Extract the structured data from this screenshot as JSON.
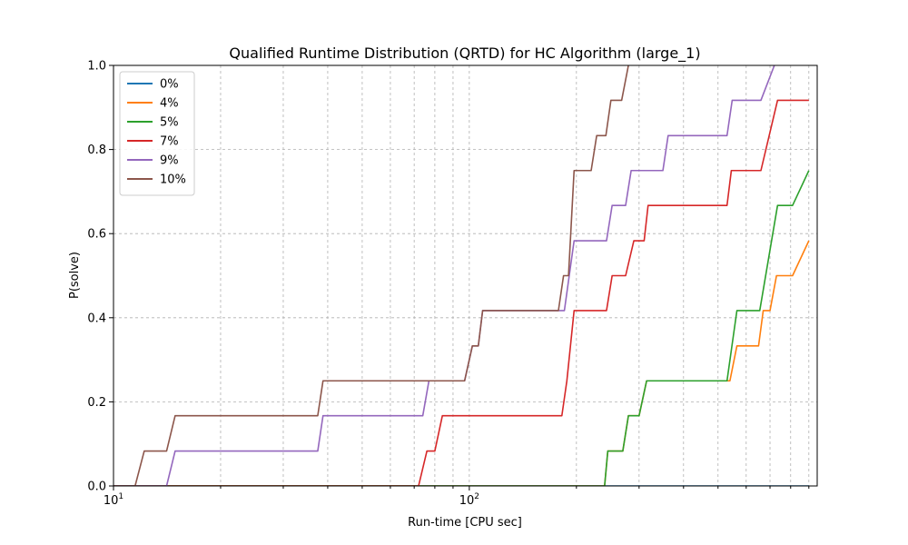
{
  "chart_data": {
    "type": "line",
    "title": "Qualified Runtime Distribution (QRTD) for HC Algorithm (large_1)",
    "xlabel": "Run-time [CPU sec]",
    "ylabel": "P(solve)",
    "xscale": "log",
    "xlim": [
      10,
      950
    ],
    "ylim": [
      0,
      1.0
    ],
    "x_tick_labels": [
      {
        "value": 10,
        "base": "10",
        "exp": "1"
      },
      {
        "value": 100,
        "base": "10",
        "exp": "2"
      }
    ],
    "y_ticks": [
      0.0,
      0.2,
      0.4,
      0.6,
      0.8,
      1.0
    ],
    "y_tick_labels": [
      "0.0",
      "0.2",
      "0.4",
      "0.6",
      "0.8",
      "1.0"
    ],
    "grid": true,
    "legend_position": "top-left",
    "series": [
      {
        "name": "0%",
        "color": "#1f77b4",
        "points": [
          [
            10,
            0
          ],
          [
            900,
            0
          ]
        ]
      },
      {
        "name": "4%",
        "color": "#ff7f0e",
        "points": [
          [
            10,
            0
          ],
          [
            240,
            0
          ],
          [
            245,
            0.083
          ],
          [
            270,
            0.083
          ],
          [
            280,
            0.167
          ],
          [
            300,
            0.167
          ],
          [
            315,
            0.25
          ],
          [
            540,
            0.25
          ],
          [
            565,
            0.333
          ],
          [
            650,
            0.333
          ],
          [
            670,
            0.417
          ],
          [
            700,
            0.417
          ],
          [
            730,
            0.5
          ],
          [
            810,
            0.5
          ],
          [
            900,
            0.583
          ]
        ]
      },
      {
        "name": "5%",
        "color": "#2ca02c",
        "points": [
          [
            10,
            0
          ],
          [
            240,
            0
          ],
          [
            245,
            0.083
          ],
          [
            270,
            0.083
          ],
          [
            280,
            0.167
          ],
          [
            300,
            0.167
          ],
          [
            315,
            0.25
          ],
          [
            530,
            0.25
          ],
          [
            565,
            0.417
          ],
          [
            655,
            0.417
          ],
          [
            735,
            0.667
          ],
          [
            810,
            0.667
          ],
          [
            900,
            0.75
          ]
        ]
      },
      {
        "name": "7%",
        "color": "#d62728",
        "points": [
          [
            10,
            0
          ],
          [
            72,
            0
          ],
          [
            76,
            0.083
          ],
          [
            80,
            0.083
          ],
          [
            84,
            0.167
          ],
          [
            182,
            0.167
          ],
          [
            188,
            0.25
          ],
          [
            197,
            0.417
          ],
          [
            243,
            0.417
          ],
          [
            252,
            0.5
          ],
          [
            275,
            0.5
          ],
          [
            290,
            0.583
          ],
          [
            310,
            0.583
          ],
          [
            318,
            0.667
          ],
          [
            530,
            0.667
          ],
          [
            545,
            0.75
          ],
          [
            660,
            0.75
          ],
          [
            735,
            0.917
          ],
          [
            900,
            0.917
          ]
        ]
      },
      {
        "name": "9%",
        "color": "#9467bd",
        "points": [
          [
            10,
            0
          ],
          [
            14.1,
            0
          ],
          [
            14.9,
            0.083
          ],
          [
            37.5,
            0.083
          ],
          [
            38.8,
            0.167
          ],
          [
            74,
            0.167
          ],
          [
            77,
            0.25
          ],
          [
            97,
            0.25
          ],
          [
            102,
            0.333
          ],
          [
            106,
            0.333
          ],
          [
            109,
            0.417
          ],
          [
            185,
            0.417
          ],
          [
            197,
            0.583
          ],
          [
            243,
            0.583
          ],
          [
            252,
            0.667
          ],
          [
            275,
            0.667
          ],
          [
            285,
            0.75
          ],
          [
            350,
            0.75
          ],
          [
            362,
            0.833
          ],
          [
            530,
            0.833
          ],
          [
            548,
            0.917
          ],
          [
            660,
            0.917
          ],
          [
            720,
            1.0
          ]
        ]
      },
      {
        "name": "10%",
        "color": "#8c564b",
        "points": [
          [
            10,
            0
          ],
          [
            11.5,
            0
          ],
          [
            12.2,
            0.083
          ],
          [
            14.1,
            0.083
          ],
          [
            14.9,
            0.167
          ],
          [
            37.5,
            0.167
          ],
          [
            38.8,
            0.25
          ],
          [
            97,
            0.25
          ],
          [
            102,
            0.333
          ],
          [
            106,
            0.333
          ],
          [
            109,
            0.417
          ],
          [
            178,
            0.417
          ],
          [
            184,
            0.5
          ],
          [
            190,
            0.5
          ],
          [
            197,
            0.75
          ],
          [
            220,
            0.75
          ],
          [
            228,
            0.833
          ],
          [
            242,
            0.833
          ],
          [
            250,
            0.917
          ],
          [
            268,
            0.917
          ],
          [
            280,
            1.0
          ]
        ]
      }
    ]
  }
}
